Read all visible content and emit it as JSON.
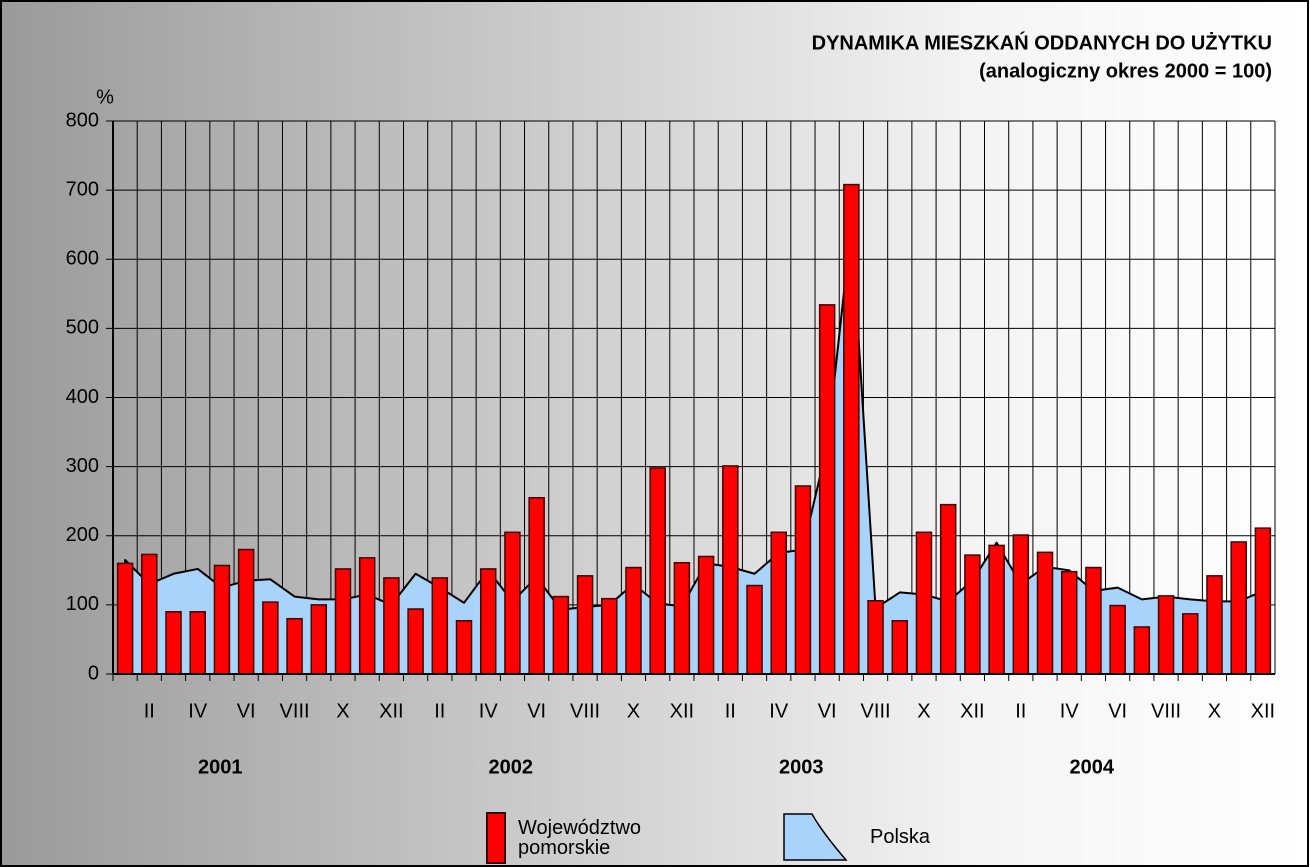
{
  "chart_data": {
    "type": "bar",
    "title": "DYNAMIKA MIESZKAŃ ODDANYCH DO UŻYTKU",
    "subtitle": "(analogiczny okres 2000 = 100)",
    "y_label": "%",
    "categories": [
      null,
      "II",
      null,
      "IV",
      null,
      "VI",
      null,
      "VIII",
      null,
      "X",
      null,
      "XII",
      null,
      "II",
      null,
      "IV",
      null,
      "VI",
      null,
      "VIII",
      null,
      "X",
      null,
      "XII",
      null,
      "II",
      null,
      "IV",
      null,
      "VI",
      null,
      "VIII",
      null,
      "X",
      null,
      "XII",
      null,
      "II",
      null,
      "IV",
      null,
      "VI",
      null,
      "VIII",
      null,
      "X",
      null,
      "XII"
    ],
    "year_labels": [
      "2001",
      "2002",
      "2003",
      "2004"
    ],
    "series": [
      {
        "name": "Województwo pomorskie",
        "color": "#ff0000",
        "type": "bar",
        "values": [
          160,
          173,
          90,
          90,
          157,
          180,
          104,
          80,
          100,
          152,
          168,
          139,
          94,
          139,
          77,
          152,
          205,
          255,
          112,
          142,
          109,
          154,
          298,
          161,
          170,
          301,
          128,
          205,
          272,
          534,
          708,
          106,
          77,
          205,
          245,
          172,
          186,
          201,
          176,
          148,
          154,
          99,
          68,
          113,
          87,
          142,
          191,
          211
        ]
      },
      {
        "name": "Polska",
        "color": "#a8d4fb",
        "type": "area",
        "values": [
          165,
          130,
          145,
          152,
          125,
          135,
          137,
          112,
          108,
          108,
          115,
          100,
          145,
          125,
          103,
          150,
          105,
          140,
          93,
          97,
          100,
          130,
          102,
          98,
          160,
          155,
          145,
          175,
          180,
          330,
          650,
          95,
          118,
          115,
          105,
          135,
          190,
          130,
          155,
          150,
          120,
          125,
          108,
          112,
          108,
          105,
          105,
          120
        ]
      }
    ],
    "ylim": [
      0,
      800
    ],
    "yticks": [
      0,
      100,
      200,
      300,
      400,
      500,
      600,
      700,
      800
    ],
    "grid": true
  }
}
